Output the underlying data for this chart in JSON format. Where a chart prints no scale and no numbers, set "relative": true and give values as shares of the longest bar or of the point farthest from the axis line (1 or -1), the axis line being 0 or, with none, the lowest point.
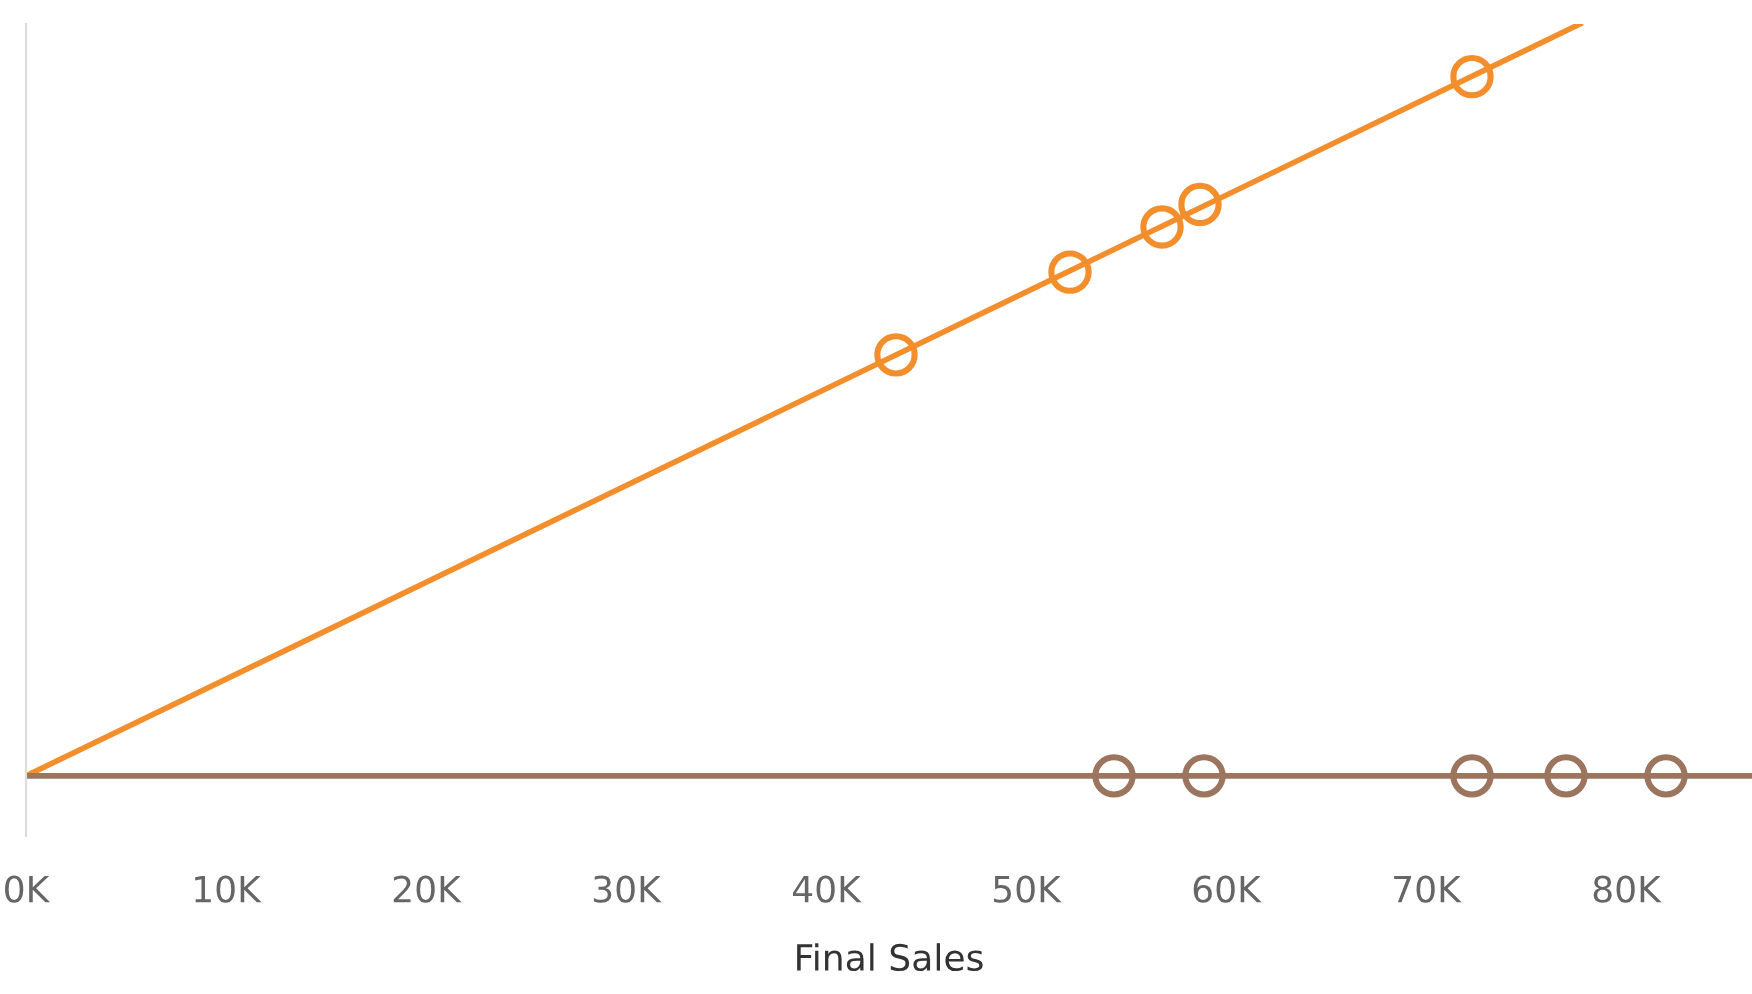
{
  "chart_data": {
    "type": "scatter",
    "relative": true,
    "xlabel": "Final Sales",
    "grid": false,
    "tick_labels": "x",
    "xlim": [
      0,
      86300
    ],
    "xticks": [
      {
        "value": 0,
        "label": "0K"
      },
      {
        "value": 10000,
        "label": "10K"
      },
      {
        "value": 20000,
        "label": "20K"
      },
      {
        "value": 30000,
        "label": "30K"
      },
      {
        "value": 40000,
        "label": "40K"
      },
      {
        "value": 50000,
        "label": "50K"
      },
      {
        "value": 60000,
        "label": "60K"
      },
      {
        "value": 70000,
        "label": "70K"
      },
      {
        "value": 80000,
        "label": "80K"
      }
    ],
    "series": [
      {
        "marker": "circle",
        "color": "#f28e2b",
        "x": [
          43500,
          52200,
          56800,
          58700,
          72300
        ],
        "values": [
          0.56,
          0.67,
          0.73,
          0.76,
          0.93
        ]
      },
      {
        "type": "line",
        "color": "#f28e2b",
        "x": [
          0,
          77700
        ],
        "values": [
          0,
          1
        ]
      },
      {
        "marker": "circle",
        "color": "#9c755f",
        "x": [
          54400,
          58900,
          72300,
          77000,
          82000
        ],
        "values": [
          0,
          0,
          0,
          0,
          0
        ]
      },
      {
        "type": "line",
        "color": "#9c755f",
        "x": [
          0,
          86300
        ],
        "values": [
          0,
          0
        ]
      }
    ]
  }
}
